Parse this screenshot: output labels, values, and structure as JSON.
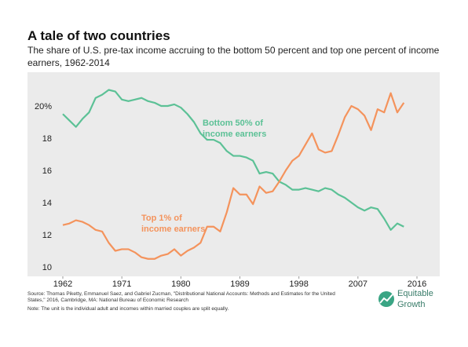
{
  "chart_data": {
    "type": "line",
    "title": "A tale of two countries",
    "subtitle": [
      "The share of U.S. pre-tax income accruing to the bottom 50 percent and top one percent of income",
      "earners, 1962-2014"
    ],
    "x": [
      1962,
      1963,
      1964,
      1965,
      1966,
      1967,
      1968,
      1969,
      1970,
      1971,
      1972,
      1973,
      1974,
      1975,
      1976,
      1977,
      1978,
      1979,
      1980,
      1981,
      1982,
      1983,
      1984,
      1985,
      1986,
      1987,
      1988,
      1989,
      1990,
      1991,
      1992,
      1993,
      1994,
      1995,
      1996,
      1997,
      1998,
      1999,
      2000,
      2001,
      2002,
      2003,
      2004,
      2005,
      2006,
      2007,
      2008,
      2009,
      2010,
      2011,
      2012,
      2013,
      2014
    ],
    "series": [
      {
        "name": "Bottom 50%",
        "color": "#5cc196",
        "values": [
          19.5,
          19.1,
          18.7,
          19.2,
          19.6,
          20.5,
          20.7,
          21.0,
          20.9,
          20.4,
          20.3,
          20.4,
          20.5,
          20.3,
          20.2,
          20.0,
          20.0,
          20.1,
          19.9,
          19.5,
          19.0,
          18.3,
          17.9,
          17.9,
          17.7,
          17.2,
          16.9,
          16.9,
          16.8,
          16.6,
          15.8,
          15.9,
          15.8,
          15.3,
          15.1,
          14.8,
          14.8,
          14.9,
          14.8,
          14.7,
          14.9,
          14.8,
          14.5,
          14.3,
          14.0,
          13.7,
          13.5,
          13.7,
          13.6,
          13.0,
          12.3,
          12.7,
          12.5
        ]
      },
      {
        "name": "Top 1%",
        "color": "#f4935c",
        "values": [
          12.6,
          12.7,
          12.9,
          12.8,
          12.6,
          12.3,
          12.2,
          11.5,
          11.0,
          11.1,
          11.1,
          10.9,
          10.6,
          10.5,
          10.5,
          10.7,
          10.8,
          11.1,
          10.7,
          11.0,
          11.2,
          11.5,
          12.5,
          12.5,
          12.2,
          13.4,
          14.9,
          14.5,
          14.5,
          13.9,
          15.0,
          14.6,
          14.7,
          15.3,
          16.0,
          16.6,
          16.9,
          17.6,
          18.3,
          17.3,
          17.1,
          17.2,
          18.2,
          19.3,
          20.0,
          19.8,
          19.4,
          18.5,
          19.8,
          19.6,
          20.8,
          19.6,
          20.2
        ]
      }
    ],
    "annotations": [
      [
        "Bottom 50% of",
        "income earners"
      ],
      [
        "Top 1% of",
        "income earners"
      ]
    ],
    "xlim": [
      1962,
      2016
    ],
    "xticks": [
      1962,
      1971,
      1980,
      1989,
      1998,
      2007,
      2016
    ],
    "ylim": [
      10,
      22
    ],
    "yticks": [
      10,
      12,
      14,
      16,
      18,
      {
        "value": 20,
        "label": "20%"
      }
    ],
    "source": [
      "Source: Thomas Piketty, Emmanuel Saez, and Gabriel Zucman, \"Distributional National Accounts: Methods and Estimates for the United",
      "States,\" 2016, Cambridge, MA: National Bureau of Economic Research"
    ],
    "note": "Note: The unit is the individual adult and incomes within married couples are split equally.",
    "logo": [
      "Equitable",
      "Growth"
    ]
  }
}
